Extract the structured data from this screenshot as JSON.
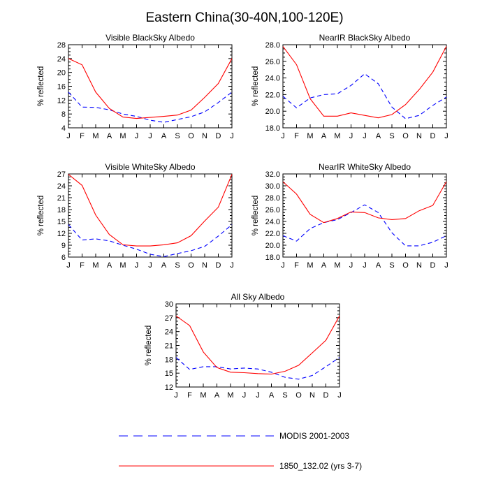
{
  "title": "Eastern China(30-40N,100-120E)",
  "chart_data": [
    {
      "type": "line",
      "title": "Visible BlackSky Albedo",
      "ylabel": "% reflected",
      "categories": [
        "J",
        "F",
        "M",
        "A",
        "M",
        "J",
        "J",
        "A",
        "S",
        "O",
        "N",
        "D",
        "J"
      ],
      "ylim": [
        4,
        28
      ],
      "yticks": [
        "4",
        "8",
        "12",
        "16",
        "20",
        "24",
        "28"
      ],
      "series": [
        {
          "name": "MODIS 2001-2003",
          "values": [
            14.3,
            10.0,
            9.9,
            9.2,
            8.0,
            7.3,
            6.2,
            5.6,
            6.4,
            7.2,
            8.6,
            11.3,
            14.3
          ]
        },
        {
          "name": "1850_132.02 (yrs 3-7)",
          "values": [
            24.0,
            22.2,
            14.3,
            9.6,
            7.1,
            6.7,
            7.0,
            7.3,
            7.7,
            9.1,
            12.8,
            16.8,
            24.0
          ]
        }
      ]
    },
    {
      "type": "line",
      "title": "NearIR BlackSky Albedo",
      "ylabel": "% reflected",
      "categories": [
        "J",
        "F",
        "M",
        "A",
        "M",
        "J",
        "J",
        "A",
        "S",
        "O",
        "N",
        "D",
        "J"
      ],
      "ylim": [
        18,
        28
      ],
      "yticks": [
        "18.0",
        "20.0",
        "22.0",
        "24.0",
        "26.0",
        "28.0"
      ],
      "series": [
        {
          "name": "MODIS 2001-2003",
          "values": [
            21.8,
            20.4,
            21.6,
            22.0,
            22.1,
            23.1,
            24.5,
            23.3,
            20.5,
            19.1,
            19.5,
            20.7,
            21.7
          ]
        },
        {
          "name": "1850_132.02 (yrs 3-7)",
          "values": [
            27.8,
            25.6,
            21.5,
            19.4,
            19.4,
            19.8,
            19.5,
            19.2,
            19.6,
            20.8,
            22.6,
            24.7,
            27.8
          ]
        }
      ]
    },
    {
      "type": "line",
      "title": "Visible WhiteSky Albedo",
      "ylabel": "% reflected",
      "categories": [
        "J",
        "F",
        "M",
        "A",
        "M",
        "J",
        "J",
        "A",
        "S",
        "O",
        "N",
        "D",
        "J"
      ],
      "ylim": [
        6,
        27
      ],
      "yticks": [
        "6",
        "9",
        "12",
        "15",
        "18",
        "21",
        "24",
        "27"
      ],
      "series": [
        {
          "name": "MODIS 2001-2003",
          "values": [
            14.2,
            10.3,
            10.6,
            10.1,
            9.0,
            8.0,
            6.7,
            6.1,
            6.9,
            7.6,
            8.7,
            11.3,
            14.2
          ]
        },
        {
          "name": "1850_132.02 (yrs 3-7)",
          "values": [
            26.9,
            24.1,
            16.6,
            11.7,
            9.1,
            8.8,
            8.8,
            9.1,
            9.6,
            11.4,
            15.1,
            18.6,
            26.9
          ]
        }
      ]
    },
    {
      "type": "line",
      "title": "NearIR WhiteSky Albedo",
      "ylabel": "% reflected",
      "categories": [
        "J",
        "F",
        "M",
        "A",
        "M",
        "J",
        "J",
        "A",
        "S",
        "O",
        "N",
        "D",
        "J"
      ],
      "ylim": [
        18,
        32
      ],
      "yticks": [
        "18.0",
        "20.0",
        "22.0",
        "24.0",
        "26.0",
        "28.0",
        "30.0",
        "32.0"
      ],
      "series": [
        {
          "name": "MODIS 2001-2003",
          "values": [
            21.6,
            20.7,
            22.8,
            23.8,
            24.3,
            25.5,
            26.8,
            25.5,
            22.1,
            19.9,
            19.9,
            20.5,
            21.6
          ]
        },
        {
          "name": "1850_132.02 (yrs 3-7)",
          "values": [
            30.7,
            28.6,
            25.2,
            23.8,
            24.5,
            25.6,
            25.5,
            24.6,
            24.3,
            24.5,
            25.8,
            26.7,
            30.7
          ]
        }
      ]
    },
    {
      "type": "line",
      "title": "All Sky Albedo",
      "ylabel": "% reflected",
      "categories": [
        "J",
        "F",
        "M",
        "A",
        "M",
        "J",
        "J",
        "A",
        "S",
        "O",
        "N",
        "D",
        "J"
      ],
      "ylim": [
        12,
        30
      ],
      "yticks": [
        "12",
        "15",
        "18",
        "21",
        "24",
        "27",
        "30"
      ],
      "series": [
        {
          "name": "MODIS 2001-2003",
          "values": [
            18.4,
            15.8,
            16.4,
            16.4,
            15.9,
            16.1,
            15.9,
            15.2,
            14.1,
            13.7,
            14.5,
            16.4,
            18.4
          ]
        },
        {
          "name": "1850_132.02 (yrs 3-7)",
          "values": [
            27.4,
            25.3,
            19.6,
            16.2,
            15.2,
            15.1,
            14.9,
            14.8,
            15.4,
            16.7,
            19.4,
            22.1,
            27.4
          ]
        }
      ]
    }
  ],
  "legend": [
    {
      "label": "MODIS 2001-2003",
      "color": "#0000ff",
      "style": "dashed"
    },
    {
      "label": "1850_132.02 (yrs 3-7)",
      "color": "#ff0000",
      "style": "solid"
    }
  ]
}
